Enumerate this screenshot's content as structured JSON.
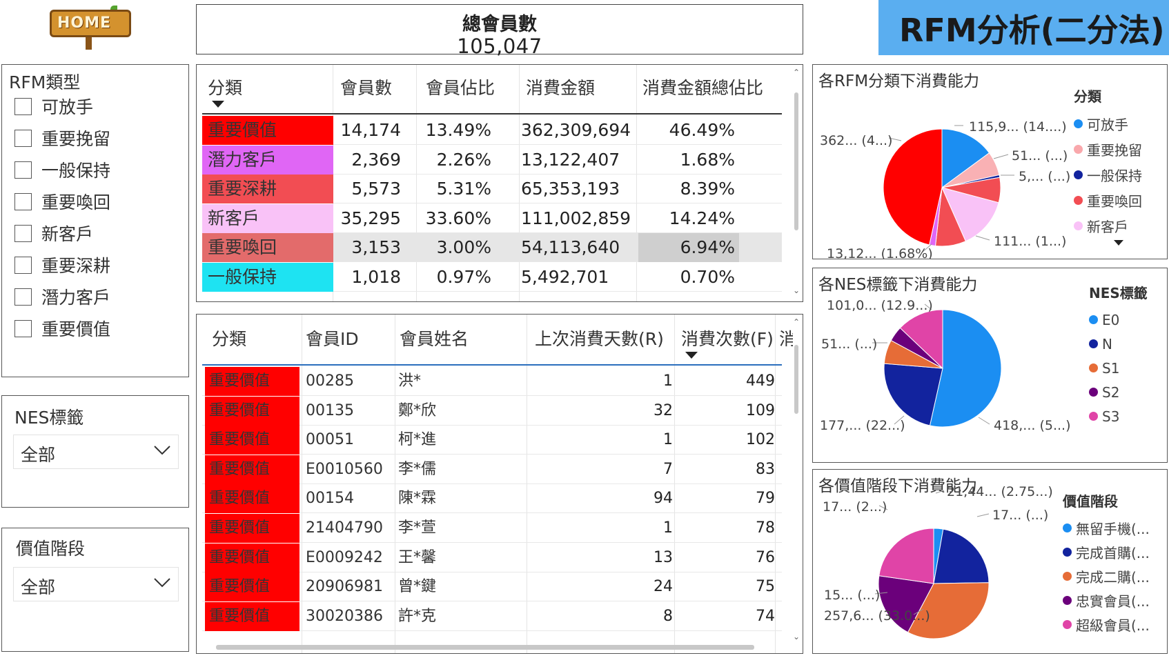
{
  "home": {
    "label": "HOME"
  },
  "title": "RFM分析(二分法)",
  "kpi": {
    "label": "總會員數",
    "value": "105,047"
  },
  "slicers": {
    "rfm": {
      "title": "RFM類型",
      "items": [
        "可放手",
        "重要挽留",
        "一般保持",
        "重要喚回",
        "新客戶",
        "重要深耕",
        "潛力客戶",
        "重要價值"
      ]
    },
    "nes": {
      "title": "NES標籤",
      "value": "全部"
    },
    "value_stage": {
      "title": "價值階段",
      "value": "全部"
    }
  },
  "summary_table": {
    "headers": [
      "分類",
      "會員數",
      "會員佔比",
      "消費金額",
      "消費金額總佔比"
    ],
    "rows": [
      {
        "cat": "重要價值",
        "color": "#ff0000",
        "count": "14,174",
        "share": "13.49%",
        "amount": "362,309,694",
        "amount_share": "46.49%"
      },
      {
        "cat": "潛力客戶",
        "color": "#e066f5",
        "count": "2,369",
        "share": "2.26%",
        "amount": "13,122,407",
        "amount_share": "1.68%"
      },
      {
        "cat": "重要深耕",
        "color": "#f24d53",
        "count": "5,573",
        "share": "5.31%",
        "amount": "65,353,193",
        "amount_share": "8.39%"
      },
      {
        "cat": "新客戶",
        "color": "#f9c2f7",
        "count": "35,295",
        "share": "33.60%",
        "amount": "111,002,859",
        "amount_share": "14.24%"
      },
      {
        "cat": "重要喚回",
        "color": "#e36b6b",
        "count": "3,153",
        "share": "3.00%",
        "amount": "54,113,640",
        "amount_share": "6.94%"
      },
      {
        "cat": "一般保持",
        "color": "#1ee3f2",
        "count": "1,018",
        "share": "0.97%",
        "amount": "5,492,701",
        "amount_share": "0.70%"
      }
    ]
  },
  "detail_table": {
    "headers": [
      "分類",
      "會員ID",
      "會員姓名",
      "上次消費天數(R)",
      "消費次數(F)",
      "消"
    ],
    "rows": [
      {
        "cat": "重要價值",
        "id": "00285",
        "name": "洪*",
        "r": "1",
        "f": "449"
      },
      {
        "cat": "重要價值",
        "id": "00135",
        "name": "鄭*欣",
        "r": "32",
        "f": "109"
      },
      {
        "cat": "重要價值",
        "id": "00051",
        "name": "柯*進",
        "r": "1",
        "f": "102"
      },
      {
        "cat": "重要價值",
        "id": "E0010560",
        "name": "李*儒",
        "r": "7",
        "f": "83"
      },
      {
        "cat": "重要價值",
        "id": "00154",
        "name": "陳*霖",
        "r": "94",
        "f": "79"
      },
      {
        "cat": "重要價值",
        "id": "21404790",
        "name": "李*萱",
        "r": "1",
        "f": "78"
      },
      {
        "cat": "重要價值",
        "id": "E0009242",
        "name": "王*馨",
        "r": "13",
        "f": "76"
      },
      {
        "cat": "重要價值",
        "id": "20906981",
        "name": "曾*鍵",
        "r": "24",
        "f": "75"
      },
      {
        "cat": "重要價值",
        "id": "30020386",
        "name": "許*克",
        "r": "8",
        "f": "74"
      }
    ]
  },
  "chart_data": [
    {
      "type": "pie",
      "title": "各RFM分類下消費能力",
      "legend_title": "分類",
      "legend": [
        "可放手",
        "重要挽留",
        "一般保持",
        "重要喚回",
        "新客戶"
      ],
      "legend_colors": [
        "#1b8ef2",
        "#f9a8ac",
        "#12239e",
        "#f24d53",
        "#f9c2f7"
      ],
      "slices": [
        {
          "name": "可放手",
          "value": 14.9,
          "color": "#1b8ef2"
        },
        {
          "name": "重要挽留",
          "value": 6.6,
          "color": "#f9b1b4"
        },
        {
          "name": "一般保持",
          "value": 0.7,
          "color": "#12239e"
        },
        {
          "name": "重要喚回",
          "value": 6.9,
          "color": "#f24d53"
        },
        {
          "name": "新客戶",
          "value": 14.24,
          "color": "#f9c2f7"
        },
        {
          "name": "重要深耕",
          "value": 8.39,
          "color": "#f24d53"
        },
        {
          "name": "潛力客戶",
          "value": 1.68,
          "color": "#e066f5"
        },
        {
          "name": "重要價值",
          "value": 46.49,
          "color": "#ff0000"
        }
      ],
      "data_labels": [
        "115,9... (14....)",
        "51... (...)",
        "5,... (...)",
        "111... (1...)",
        "13,12... (1.68%)",
        "362... (4...)"
      ]
    },
    {
      "type": "pie",
      "title": "各NES標籤下消費能力",
      "legend_title": "NES標籤",
      "legend": [
        "E0",
        "N",
        "S1",
        "S2",
        "S3"
      ],
      "legend_colors": [
        "#1b8ef2",
        "#12239e",
        "#e66c37",
        "#6b007b",
        "#e044a7"
      ],
      "slices": [
        {
          "name": "E0",
          "value": 53.5,
          "color": "#1b8ef2"
        },
        {
          "name": "N",
          "value": 22.8,
          "color": "#12239e"
        },
        {
          "name": "S1",
          "value": 6.6,
          "color": "#e66c37"
        },
        {
          "name": "S2",
          "value": 4.2,
          "color": "#6b007b"
        },
        {
          "name": "S3",
          "value": 12.9,
          "color": "#e044a7"
        }
      ],
      "data_labels": [
        "101,0... (12.9...)",
        "51... (...)",
        "177,... (22...)",
        "418,... (5...)"
      ]
    },
    {
      "type": "pie",
      "title": "各價值階段下消費能力",
      "legend_title": "價值階段",
      "legend": [
        "無留手機(...",
        "完成首購(...",
        "完成二購(...",
        "忠實會員(...",
        "超級會員(..."
      ],
      "legend_colors": [
        "#1b8ef2",
        "#12239e",
        "#e66c37",
        "#6b007b",
        "#e044a7"
      ],
      "slices": [
        {
          "name": "無留手機",
          "value": 2.75,
          "color": "#1b8ef2"
        },
        {
          "name": "完成首購",
          "value": 22.0,
          "color": "#12239e"
        },
        {
          "name": "完成二購",
          "value": 33.0,
          "color": "#e66c37"
        },
        {
          "name": "忠實會員",
          "value": 19.5,
          "color": "#6b007b"
        },
        {
          "name": "超級會員",
          "value": 22.75,
          "color": "#e044a7"
        }
      ],
      "data_labels": [
        "21,44... (2.75...)",
        "17... (...)",
        "17... (2...)",
        "15... (...)",
        "257,6... (33.0...)"
      ]
    }
  ]
}
